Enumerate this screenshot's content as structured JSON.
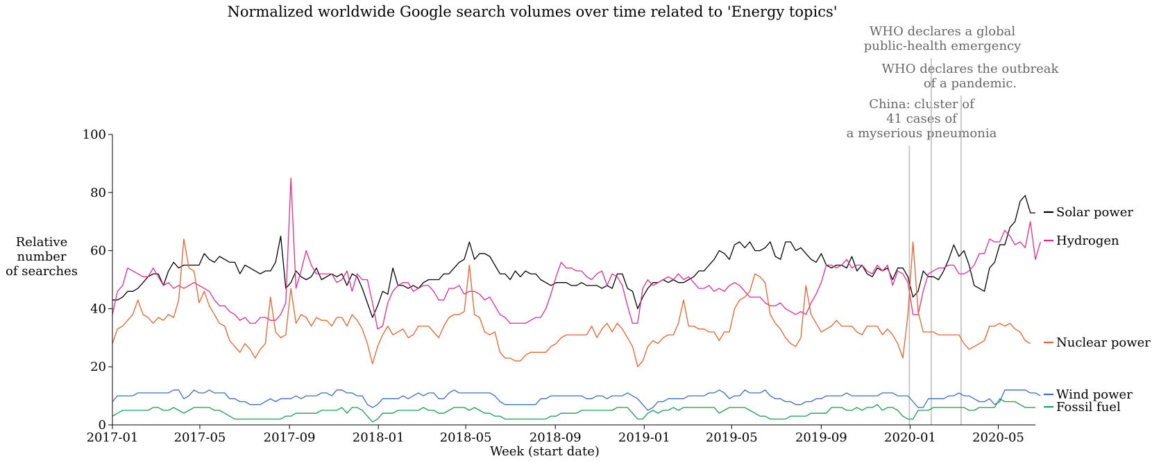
{
  "chart_data": {
    "type": "line",
    "title": "Normalized worldwide Google search volumes over time related to 'Energy topics'",
    "xlabel": "Week (start date)",
    "ylabel": [
      "Relative",
      "number",
      "of searches"
    ],
    "ylim": [
      0,
      100
    ],
    "yticks": [
      0,
      20,
      40,
      60,
      80,
      100
    ],
    "xlim": [
      "2017-01-01",
      "2020-06-21"
    ],
    "xticks": [
      {
        "date": "2017-01-01",
        "label": "2017-01"
      },
      {
        "date": "2017-05-01",
        "label": "2017-05"
      },
      {
        "date": "2017-09-01",
        "label": "2017-09"
      },
      {
        "date": "2018-01-01",
        "label": "2018-01"
      },
      {
        "date": "2018-05-01",
        "label": "2018-05"
      },
      {
        "date": "2018-09-01",
        "label": "2018-09"
      },
      {
        "date": "2019-01-01",
        "label": "2019-01"
      },
      {
        "date": "2019-05-01",
        "label": "2019-05"
      },
      {
        "date": "2019-09-01",
        "label": "2019-09"
      },
      {
        "date": "2020-01-01",
        "label": "2020-01"
      },
      {
        "date": "2020-05-01",
        "label": "2020-05"
      }
    ],
    "x_start": "2017-01-01",
    "x_step_days": 7,
    "grid": false,
    "legend_placement": "right, at series ends",
    "events": [
      {
        "date": "2019-12-31",
        "label": [
          "China: cluster of",
          "41 cases of",
          "a myserious pneumonia"
        ]
      },
      {
        "date": "2020-01-30",
        "label": [
          "WHO declares a global",
          "public-health emergency"
        ]
      },
      {
        "date": "2020-03-11",
        "label": [
          "WHO declares the outbreak",
          "of a pandemic."
        ]
      }
    ],
    "series": [
      {
        "name": "Solar power",
        "color": "#000000",
        "values": [
          43,
          43,
          44,
          46,
          46,
          47,
          49,
          51,
          52,
          52,
          48,
          53,
          56,
          54,
          55,
          55,
          55,
          55,
          59,
          57,
          56,
          58,
          57,
          56,
          56,
          52,
          55,
          54,
          53,
          52,
          53,
          53,
          56,
          65,
          47,
          49,
          53,
          51,
          50,
          51,
          54,
          50,
          51,
          52,
          51,
          52,
          48,
          52,
          51,
          47,
          42,
          37,
          41,
          46,
          45,
          54,
          48,
          48,
          47,
          48,
          47,
          49,
          50,
          50,
          50,
          52,
          52,
          54,
          56,
          57,
          63,
          57,
          59,
          59,
          58,
          55,
          52,
          52,
          50,
          53,
          51,
          53,
          52,
          52,
          50,
          49,
          48,
          49,
          49,
          49,
          48,
          48,
          49,
          48,
          48,
          48,
          47,
          48,
          47,
          52,
          52,
          47,
          46,
          40,
          44,
          47,
          49,
          49,
          50,
          49,
          50,
          49,
          49,
          50,
          51,
          53,
          53,
          55,
          57,
          60,
          59,
          57,
          62,
          63,
          61,
          63,
          60,
          60,
          61,
          63,
          58,
          57,
          63,
          63,
          60,
          61,
          59,
          57,
          56,
          59,
          55,
          54,
          55,
          55,
          54,
          58,
          53,
          55,
          52,
          51,
          54,
          53,
          54,
          50,
          54,
          54,
          51,
          44,
          46,
          53,
          51,
          51,
          50,
          53,
          57,
          62,
          58,
          60,
          55,
          48,
          47,
          46,
          54,
          56,
          62,
          62,
          68,
          70,
          77,
          79,
          73,
          73
        ]
      },
      {
        "name": "Hydrogen",
        "color": "#e7298a",
        "values": [
          38,
          46,
          48,
          54,
          53,
          52,
          51,
          51,
          54,
          51,
          48,
          49,
          47,
          48,
          47,
          48,
          49,
          48,
          47,
          46,
          43,
          41,
          41,
          39,
          38,
          36,
          37,
          35,
          35,
          37,
          37,
          36,
          36,
          38,
          42,
          85,
          47,
          53,
          60,
          55,
          52,
          52,
          52,
          52,
          49,
          50,
          53,
          46,
          52,
          50,
          50,
          42,
          33,
          34,
          42,
          46,
          48,
          49,
          49,
          46,
          47,
          48,
          48,
          46,
          43,
          43,
          47,
          47,
          48,
          45,
          46,
          46,
          45,
          43,
          44,
          41,
          38,
          37,
          35,
          35,
          35,
          35,
          36,
          37,
          37,
          40,
          45,
          51,
          56,
          54,
          54,
          53,
          53,
          51,
          50,
          52,
          53,
          48,
          52,
          51,
          48,
          41,
          35,
          35,
          47,
          50,
          48,
          49,
          50,
          51,
          50,
          52,
          50,
          51,
          49,
          47,
          47,
          48,
          46,
          47,
          46,
          48,
          49,
          48,
          46,
          44,
          44,
          44,
          42,
          41,
          41,
          42,
          40,
          39,
          38,
          39,
          38,
          42,
          45,
          49,
          55,
          55,
          54,
          55,
          57,
          54,
          55,
          55,
          53,
          52,
          55,
          53,
          55,
          48,
          53,
          52,
          49,
          38,
          38,
          46,
          52,
          53,
          54,
          54,
          55,
          55,
          52,
          52,
          53,
          55,
          59,
          59,
          64,
          63,
          63,
          67,
          65,
          62,
          63,
          61,
          70,
          57,
          63
        ]
      },
      {
        "name": "Nuclear power",
        "color": "#e8622a",
        "values": [
          28,
          33,
          34,
          36,
          38,
          43,
          38,
          37,
          35,
          37,
          36,
          38,
          37,
          43,
          64,
          54,
          53,
          42,
          46,
          41,
          38,
          35,
          34,
          29,
          27,
          25,
          28,
          26,
          23,
          26,
          28,
          44,
          32,
          30,
          31,
          47,
          35,
          38,
          37,
          34,
          37,
          36,
          36,
          34,
          37,
          37,
          34,
          38,
          36,
          33,
          28,
          21,
          27,
          31,
          34,
          31,
          32,
          33,
          30,
          31,
          34,
          34,
          34,
          32,
          30,
          34,
          37,
          38,
          38,
          39,
          55,
          38,
          37,
          32,
          31,
          32,
          25,
          23,
          23,
          22,
          22,
          24,
          25,
          25,
          25,
          25,
          27,
          28,
          30,
          31,
          31,
          31,
          31,
          31,
          34,
          30,
          33,
          35,
          32,
          35,
          33,
          30,
          27,
          20,
          22,
          27,
          29,
          28,
          30,
          31,
          31,
          35,
          43,
          34,
          34,
          33,
          33,
          32,
          32,
          29,
          32,
          32,
          40,
          43,
          44,
          46,
          52,
          51,
          49,
          38,
          35,
          33,
          30,
          28,
          27,
          30,
          48,
          38,
          35,
          32,
          33,
          34,
          36,
          34,
          34,
          34,
          32,
          31,
          34,
          34,
          34,
          31,
          33,
          31,
          28,
          23,
          38,
          63,
          39,
          32,
          32,
          32,
          31,
          31,
          31,
          31,
          31,
          28,
          26,
          27,
          28,
          29,
          34,
          34,
          35,
          34,
          35,
          33,
          32,
          29,
          28
        ]
      },
      {
        "name": "Wind power",
        "color": "#3b6dbf",
        "values": [
          8,
          10,
          10,
          10,
          10,
          11,
          11,
          11,
          11,
          11,
          11,
          11,
          12,
          12,
          9,
          10,
          12,
          11,
          11,
          12,
          11,
          11,
          11,
          9,
          9,
          8,
          8,
          7,
          7,
          7,
          8,
          9,
          8,
          9,
          9,
          9,
          10,
          9,
          10,
          10,
          10,
          11,
          11,
          10,
          12,
          12,
          11,
          11,
          10,
          10,
          7,
          6,
          7,
          9,
          9,
          9,
          9,
          10,
          9,
          10,
          11,
          10,
          11,
          11,
          9,
          9,
          11,
          12,
          11,
          11,
          11,
          11,
          11,
          11,
          11,
          10,
          8,
          7,
          7,
          7,
          7,
          7,
          7,
          7,
          9,
          9,
          10,
          10,
          10,
          10,
          10,
          10,
          10,
          9,
          9,
          10,
          10,
          9,
          10,
          10,
          10,
          11,
          10,
          9,
          7,
          5,
          6,
          8,
          8,
          9,
          9,
          9,
          9,
          10,
          10,
          10,
          10,
          11,
          11,
          12,
          11,
          9,
          10,
          10,
          12,
          11,
          11,
          11,
          12,
          10,
          9,
          9,
          8,
          8,
          7,
          7,
          8,
          8,
          9,
          9,
          10,
          10,
          10,
          10,
          11,
          10,
          10,
          10,
          10,
          10,
          10,
          11,
          11,
          11,
          10,
          10,
          10,
          8,
          6,
          6,
          9,
          9,
          9,
          9,
          10,
          10,
          11,
          10,
          10,
          9,
          8,
          8,
          9,
          7,
          8,
          12,
          12,
          12,
          12,
          12,
          11,
          11,
          10
        ]
      },
      {
        "name": "Fossil fuel",
        "color": "#1a9e50",
        "values": [
          3,
          4,
          5,
          5,
          5,
          5,
          5,
          5,
          6,
          6,
          5,
          5,
          6,
          5,
          4,
          5,
          6,
          6,
          6,
          6,
          5,
          5,
          4,
          3,
          2,
          2,
          2,
          2,
          2,
          2,
          2,
          2,
          2,
          2,
          3,
          3,
          4,
          4,
          4,
          4,
          4,
          5,
          5,
          5,
          5,
          6,
          4,
          6,
          6,
          5,
          3,
          1,
          2,
          4,
          4,
          4,
          5,
          5,
          5,
          5,
          5,
          6,
          5,
          5,
          4,
          4,
          5,
          6,
          6,
          6,
          5,
          6,
          5,
          4,
          4,
          3,
          3,
          2,
          2,
          2,
          2,
          2,
          2,
          2,
          2,
          2,
          3,
          3,
          4,
          4,
          4,
          4,
          5,
          5,
          5,
          5,
          5,
          5,
          5,
          6,
          6,
          6,
          4,
          2,
          2,
          4,
          5,
          4,
          5,
          5,
          6,
          5,
          6,
          6,
          6,
          6,
          6,
          6,
          6,
          4,
          5,
          6,
          6,
          6,
          6,
          5,
          4,
          3,
          3,
          2,
          2,
          2,
          2,
          3,
          3,
          3,
          3,
          4,
          4,
          4,
          4,
          6,
          6,
          6,
          5,
          5,
          6,
          5,
          6,
          6,
          7,
          5,
          6,
          6,
          5,
          3,
          2,
          2,
          5,
          5,
          5,
          6,
          6,
          6,
          6,
          6,
          6,
          6,
          5,
          5,
          6,
          6,
          6,
          6,
          9,
          8,
          8,
          8,
          7,
          6,
          6,
          6
        ]
      }
    ]
  }
}
